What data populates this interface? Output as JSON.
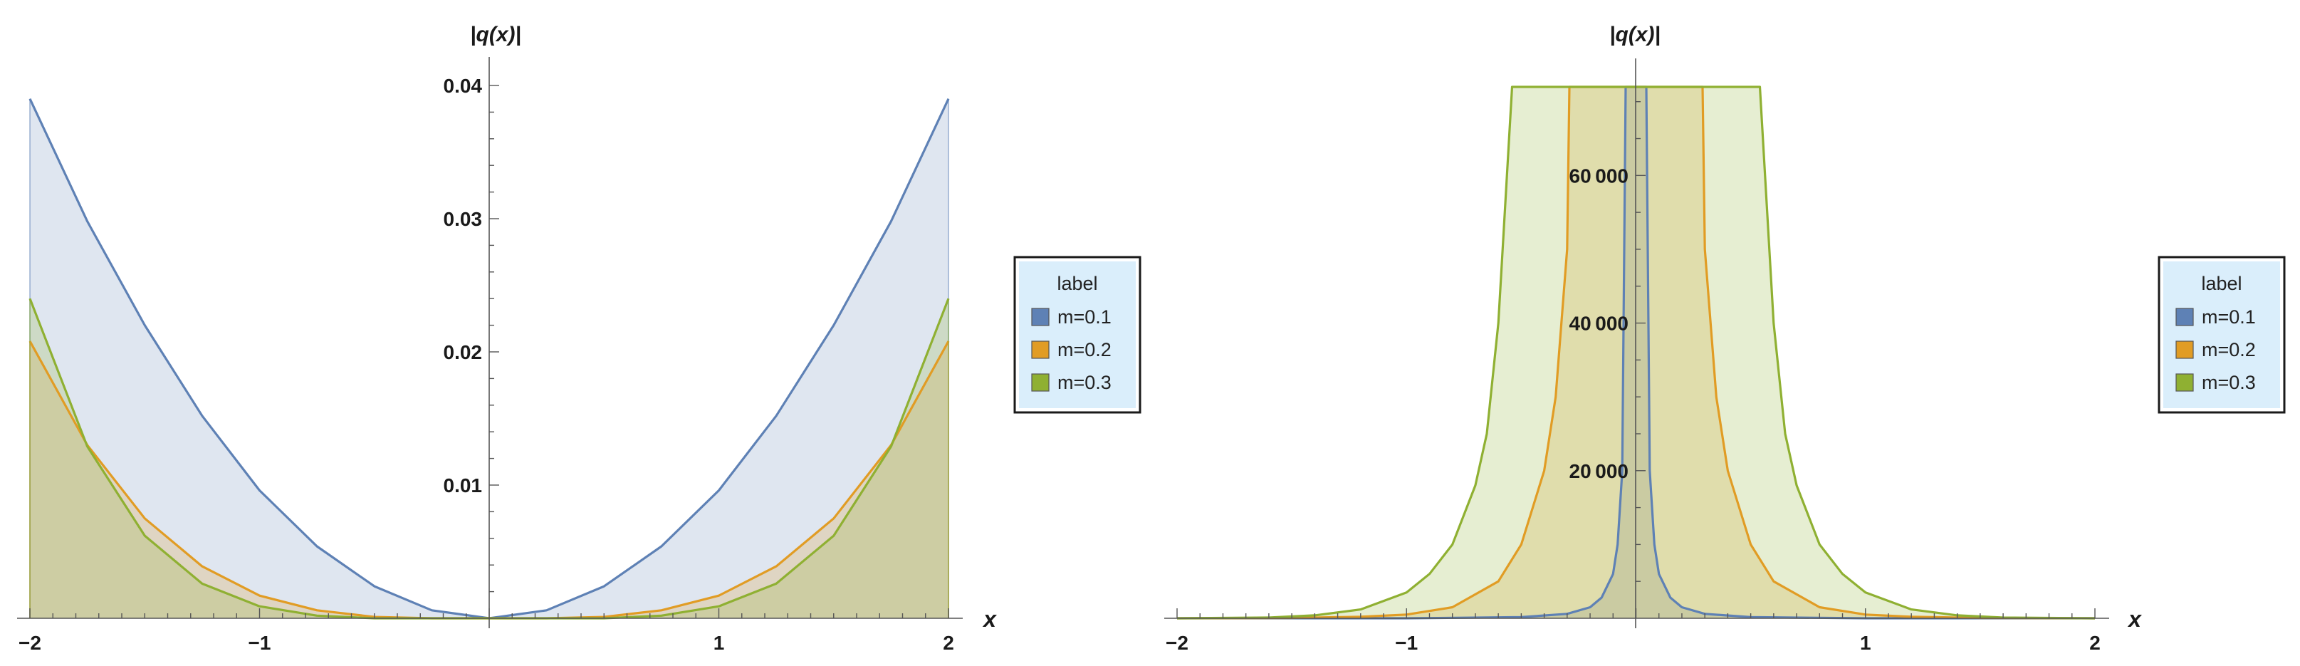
{
  "chart_data": [
    {
      "type": "area",
      "xlabel": "x",
      "ylabel": "|q(x)|",
      "xlim": [
        -2,
        2
      ],
      "ylim": [
        0,
        0.04
      ],
      "x_ticks": [
        -2,
        -1,
        1,
        2
      ],
      "x_tick_labels": [
        "−2",
        "−1",
        "1",
        "2"
      ],
      "y_ticks": [
        0.01,
        0.02,
        0.03,
        0.04
      ],
      "y_tick_labels": [
        "0.01",
        "0.02",
        "0.03",
        "0.04"
      ],
      "grid": false,
      "legend": {
        "title": "label",
        "placement": "right"
      },
      "series": [
        {
          "name": "m=0.1",
          "color": "#5e81b5",
          "x": [
            -2,
            -1.75,
            -1.5,
            -1.25,
            -1,
            -0.75,
            -0.5,
            -0.25,
            0,
            0.25,
            0.5,
            0.75,
            1,
            1.25,
            1.5,
            1.75,
            2
          ],
          "values": [
            0.039,
            0.0298,
            0.022,
            0.0152,
            0.0096,
            0.0054,
            0.0024,
            0.0006,
            0,
            0.0006,
            0.0024,
            0.0054,
            0.0096,
            0.0152,
            0.022,
            0.0298,
            0.039
          ]
        },
        {
          "name": "m=0.2",
          "color": "#e19c24",
          "x": [
            -2,
            -1.75,
            -1.5,
            -1.25,
            -1,
            -0.75,
            -0.5,
            -0.25,
            0,
            0.25,
            0.5,
            0.75,
            1,
            1.25,
            1.5,
            1.75,
            2
          ],
          "values": [
            0.0208,
            0.013,
            0.0075,
            0.0039,
            0.0017,
            0.0006,
            0.0001,
            0,
            0,
            0,
            0.0001,
            0.0006,
            0.0017,
            0.0039,
            0.0075,
            0.013,
            0.0208
          ]
        },
        {
          "name": "m=0.3",
          "color": "#8fb032",
          "x": [
            -2,
            -1.75,
            -1.5,
            -1.25,
            -1,
            -0.75,
            -0.5,
            -0.25,
            0,
            0.25,
            0.5,
            0.75,
            1,
            1.25,
            1.5,
            1.75,
            2
          ],
          "values": [
            0.024,
            0.0129,
            0.0062,
            0.0026,
            0.0009,
            0.0002,
            0,
            0,
            0,
            0,
            0,
            0.0002,
            0.0009,
            0.0026,
            0.0062,
            0.0129,
            0.024
          ]
        }
      ]
    },
    {
      "type": "area",
      "xlabel": "x",
      "ylabel": "|q(x)|",
      "xlim": [
        -2,
        2
      ],
      "ylim": [
        0,
        72000
      ],
      "x_ticks": [
        -2,
        -1,
        1,
        2
      ],
      "x_tick_labels": [
        "−2",
        "−1",
        "1",
        "2"
      ],
      "y_ticks": [
        20000,
        40000,
        60000
      ],
      "y_tick_labels": [
        "20 000",
        "40 000",
        "60 000"
      ],
      "grid": false,
      "legend": {
        "title": "label",
        "placement": "right"
      },
      "series": [
        {
          "name": "m=0.1",
          "color": "#5e81b5",
          "x": [
            -2,
            -1.5,
            -1,
            -0.5,
            -0.3,
            -0.2,
            -0.15,
            -0.1,
            -0.08,
            -0.06,
            -0.045,
            0.045,
            0.06,
            0.08,
            0.1,
            0.15,
            0.2,
            0.3,
            0.5,
            1,
            1.5,
            2
          ],
          "values": [
            0,
            0,
            0,
            150,
            600,
            1500,
            2800,
            6000,
            10000,
            20000,
            72000,
            72000,
            20000,
            10000,
            6000,
            2800,
            1500,
            600,
            150,
            0,
            0,
            0
          ]
        },
        {
          "name": "m=0.2",
          "color": "#e19c24",
          "x": [
            -2,
            -1.5,
            -1.2,
            -1,
            -0.8,
            -0.6,
            -0.5,
            -0.4,
            -0.35,
            -0.3,
            -0.29,
            0.29,
            0.3,
            0.35,
            0.4,
            0.5,
            0.6,
            0.8,
            1,
            1.2,
            1.5,
            2
          ],
          "values": [
            0,
            50,
            200,
            500,
            1500,
            5000,
            10000,
            20000,
            30000,
            50000,
            72000,
            72000,
            50000,
            30000,
            20000,
            10000,
            5000,
            1500,
            500,
            200,
            50,
            0
          ]
        },
        {
          "name": "m=0.3",
          "color": "#8fb032",
          "x": [
            -2,
            -1.6,
            -1.4,
            -1.2,
            -1,
            -0.9,
            -0.8,
            -0.7,
            -0.65,
            -0.6,
            -0.54,
            0.54,
            0.6,
            0.65,
            0.7,
            0.8,
            0.9,
            1,
            1.2,
            1.4,
            1.6,
            2
          ],
          "values": [
            0,
            100,
            400,
            1200,
            3500,
            6000,
            10000,
            18000,
            25000,
            40000,
            72000,
            72000,
            40000,
            25000,
            18000,
            10000,
            6000,
            3500,
            1200,
            400,
            100,
            0
          ]
        }
      ]
    }
  ]
}
